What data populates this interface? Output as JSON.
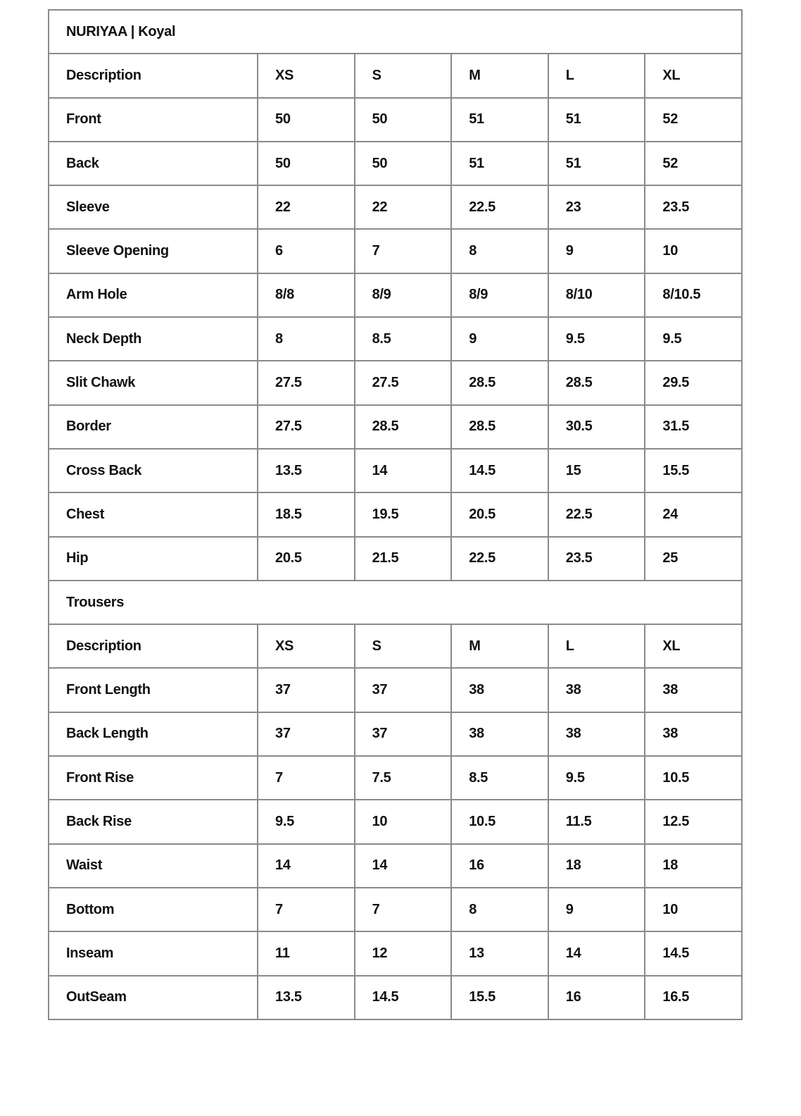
{
  "title": "NURIYAA | Koyal",
  "sections": [
    {
      "heading": null,
      "columns": [
        "Description",
        "XS",
        "S",
        "M",
        "L",
        "XL"
      ],
      "rows": [
        {
          "label": "Front",
          "values": [
            "50",
            "50",
            "51",
            "51",
            "52"
          ]
        },
        {
          "label": "Back",
          "values": [
            "50",
            "50",
            "51",
            "51",
            "52"
          ]
        },
        {
          "label": "Sleeve",
          "values": [
            "22",
            "22",
            "22.5",
            "23",
            "23.5"
          ]
        },
        {
          "label": "Sleeve Opening",
          "values": [
            "6",
            "7",
            "8",
            "9",
            "10"
          ]
        },
        {
          "label": "Arm Hole",
          "values": [
            "8/8",
            "8/9",
            "8/9",
            "8/10",
            "8/10.5"
          ]
        },
        {
          "label": "Neck Depth",
          "values": [
            "8",
            "8.5",
            "9",
            "9.5",
            "9.5"
          ]
        },
        {
          "label": "Slit Chawk",
          "values": [
            "27.5",
            "27.5",
            "28.5",
            "28.5",
            "29.5"
          ]
        },
        {
          "label": "Border",
          "values": [
            "27.5",
            "28.5",
            "28.5",
            "30.5",
            "31.5"
          ]
        },
        {
          "label": "Cross Back",
          "values": [
            "13.5",
            "14",
            "14.5",
            "15",
            "15.5"
          ]
        },
        {
          "label": "Chest",
          "values": [
            "18.5",
            "19.5",
            "20.5",
            "22.5",
            "24"
          ]
        },
        {
          "label": "Hip",
          "values": [
            "20.5",
            "21.5",
            "22.5",
            "23.5",
            "25"
          ]
        }
      ]
    },
    {
      "heading": "Trousers",
      "columns": [
        "Description",
        "XS",
        "S",
        "M",
        "L",
        "XL"
      ],
      "rows": [
        {
          "label": "Front Length",
          "values": [
            "37",
            "37",
            "38",
            "38",
            "38"
          ]
        },
        {
          "label": "Back Length",
          "values": [
            "37",
            "37",
            "38",
            "38",
            "38"
          ]
        },
        {
          "label": "Front Rise",
          "values": [
            "7",
            "7.5",
            "8.5",
            "9.5",
            "10.5"
          ]
        },
        {
          "label": "Back Rise",
          "values": [
            "9.5",
            "10",
            "10.5",
            "11.5",
            "12.5"
          ]
        },
        {
          "label": "Waist",
          "values": [
            "14",
            "14",
            "16",
            "18",
            "18"
          ]
        },
        {
          "label": "Bottom",
          "values": [
            "7",
            "7",
            "8",
            "9",
            "10"
          ]
        },
        {
          "label": "Inseam",
          "values": [
            "11",
            "12",
            "13",
            "14",
            "14.5"
          ]
        },
        {
          "label": "OutSeam",
          "values": [
            "13.5",
            "14.5",
            "15.5",
            "16",
            "16.5"
          ]
        }
      ]
    }
  ]
}
